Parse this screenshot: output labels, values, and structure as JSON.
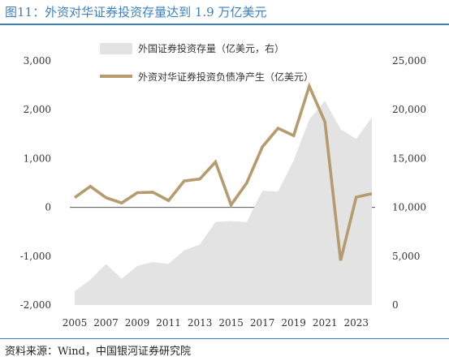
{
  "title": "图11：外资对华证券投资存量达到 1.9 万亿美元",
  "source": "资料来源：Wind，中国银河证券研究院",
  "colors": {
    "accent": "#3b7fc0",
    "area": "#e3e3e3",
    "line": "#b59b6d"
  },
  "chart_data": {
    "type": "line",
    "x": [
      2005,
      2006,
      2007,
      2008,
      2009,
      2010,
      2011,
      2012,
      2013,
      2014,
      2015,
      2016,
      2017,
      2018,
      2019,
      2020,
      2021,
      2022,
      2023,
      2024
    ],
    "x_tick_labels": [
      "2005",
      "2007",
      "2009",
      "2011",
      "2013",
      "2015",
      "2017",
      "2019",
      "2021",
      "2023"
    ],
    "y_left_ticks": [
      "3,000",
      "2,000",
      "1,000",
      "0",
      "-1,000",
      "-2,000"
    ],
    "y_right_ticks": [
      "25,000",
      "20,000",
      "15,000",
      "10,000",
      "5,000",
      "0"
    ],
    "ylim_left": [
      -2000,
      3000
    ],
    "ylim_right": [
      0,
      25000
    ],
    "legend_placement": "top-center",
    "series": [
      {
        "name": "外国证券投资存量（亿美元，右）",
        "type": "area",
        "axis": "right",
        "values": [
          1400,
          2600,
          4200,
          2700,
          4000,
          4400,
          4200,
          5600,
          6200,
          8500,
          8600,
          8500,
          11700,
          11600,
          14800,
          19000,
          20900,
          18000,
          17000,
          19200
        ]
      },
      {
        "name": "外资对华证券投资负债净产生（亿美元）",
        "type": "line",
        "axis": "left",
        "values": [
          200,
          430,
          200,
          90,
          300,
          310,
          140,
          540,
          580,
          930,
          50,
          500,
          1240,
          1620,
          1470,
          2480,
          1750,
          -1090,
          210,
          280
        ]
      }
    ]
  }
}
